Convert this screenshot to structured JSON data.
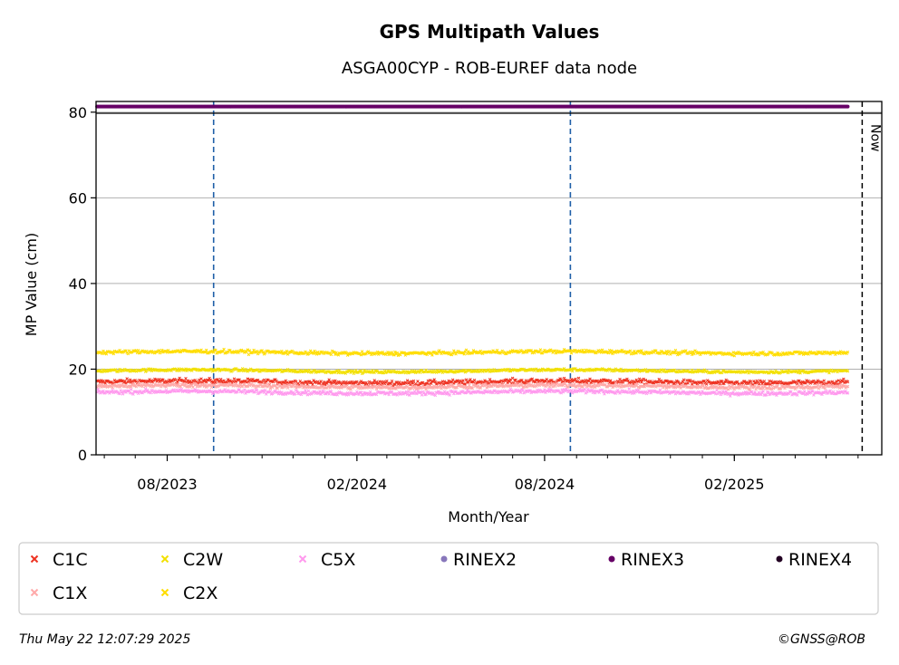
{
  "chart_data": {
    "type": "scatter",
    "title": "GPS Multipath Values",
    "subtitle": "ASGA00CYP - ROB-EUREF data node",
    "xlabel": "Month/Year",
    "ylabel": "MP Value (cm)",
    "ylim": [
      0,
      82.5
    ],
    "xlim": [
      "2023-05-24",
      "2025-06-24"
    ],
    "yticks": [
      0,
      20,
      40,
      60,
      80
    ],
    "xticks": [
      {
        "date": "2023-08-01",
        "label": "08/2023"
      },
      {
        "date": "2024-02-01",
        "label": "02/2024"
      },
      {
        "date": "2024-08-01",
        "label": "08/2024"
      },
      {
        "date": "2025-02-01",
        "label": "02/2025"
      }
    ],
    "minor_ticks_monthly": true,
    "grid": "horizontal",
    "vlines": [
      {
        "date": "2023-09-15",
        "color": "#1f5fa8",
        "style": "dashed"
      },
      {
        "date": "2024-08-26",
        "color": "#1f5fa8",
        "style": "dashed"
      }
    ],
    "now_line": {
      "date": "2025-06-05",
      "label": "Now"
    },
    "data_range": {
      "start": "2023-05-25",
      "end": "2025-05-22"
    },
    "series": [
      {
        "name": "C1C",
        "marker": "x",
        "color": "#ee3322",
        "mean": 17.0,
        "noise": 0.55
      },
      {
        "name": "C2W",
        "marker": "x",
        "color": "#f2e000",
        "mean": 19.6,
        "noise": 0.3
      },
      {
        "name": "C5X",
        "marker": "x",
        "color": "#ff99ee",
        "mean": 14.6,
        "noise": 0.45
      },
      {
        "name": "RINEX2",
        "marker": "dot",
        "color": "#8877bb",
        "mean": null
      },
      {
        "name": "RINEX3",
        "marker": "dot",
        "color": "#660066",
        "mean": 81.3
      },
      {
        "name": "RINEX4",
        "marker": "dot",
        "color": "#220022",
        "mean": null
      },
      {
        "name": "C1X",
        "marker": "x",
        "color": "#ffaaaa",
        "mean": 16.0,
        "noise": 0.45
      },
      {
        "name": "C2X",
        "marker": "x",
        "color": "#ffdd00",
        "mean": 23.9,
        "noise": 0.4
      }
    ],
    "legend_position": "bottom"
  },
  "footer": {
    "timestamp": "Thu May 22 12:07:29 2025",
    "credit": "©GNSS@ROB"
  }
}
